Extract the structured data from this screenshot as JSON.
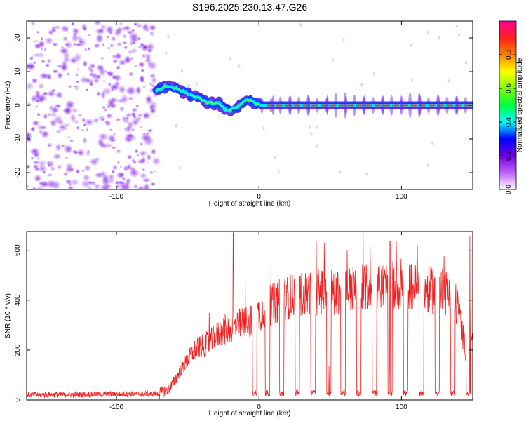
{
  "title": "S196.2025.230.13.47.G26",
  "chart_data": [
    {
      "type": "heatmap",
      "name": "spectrogram",
      "xlabel": "Height of straight line (km)",
      "ylabel": "Frequency (Hz)",
      "xlim": [
        -163,
        150
      ],
      "ylim": [
        -25,
        25
      ],
      "x_ticks": [
        -100,
        0,
        100
      ],
      "x_tick_labels": [
        "-100",
        "0",
        "100"
      ],
      "y_ticks": [
        -20,
        -10,
        0,
        10,
        20
      ],
      "y_tick_labels": [
        "-20",
        "-10",
        "0",
        "10",
        "20"
      ],
      "noise_region_x": [
        -163,
        -72
      ],
      "trace": [
        {
          "x": -72,
          "f": 4.5
        },
        {
          "x": -66,
          "f": 5.5
        },
        {
          "x": -58,
          "f": 5.0
        },
        {
          "x": -53,
          "f": 4.0
        },
        {
          "x": -48,
          "f": 3.0
        },
        {
          "x": -43,
          "f": 2.5
        },
        {
          "x": -38,
          "f": 1.0
        },
        {
          "x": -33,
          "f": 0.5
        },
        {
          "x": -28,
          "f": 0.5
        },
        {
          "x": -24,
          "f": -1.0
        },
        {
          "x": -20,
          "f": -1.5
        },
        {
          "x": -15,
          "f": -0.5
        },
        {
          "x": -10,
          "f": 1.2
        },
        {
          "x": -6,
          "f": 1.5
        },
        {
          "x": -2,
          "f": 0.5
        },
        {
          "x": 2,
          "f": 0.0
        },
        {
          "x": 150,
          "f": 0.0
        }
      ],
      "pulse_positions": [
        10,
        22,
        35,
        48,
        61,
        74,
        87,
        100,
        113,
        126,
        139
      ],
      "colorbar": {
        "label": "Normalized spectral amplitude",
        "range": [
          0,
          1
        ],
        "ticks": [
          0.0,
          0.2,
          0.4,
          0.6,
          0.8
        ],
        "tick_labels": [
          "0.0",
          "0.2",
          "0.4",
          "0.6",
          "0.8"
        ],
        "colors": [
          "#ffffff",
          "#c060ff",
          "#7000e0",
          "#0000ff",
          "#00ffff",
          "#00ff40",
          "#80ff00",
          "#ffff00",
          "#ff8000",
          "#ff2020",
          "#ff0090"
        ]
      }
    },
    {
      "type": "line",
      "name": "snr",
      "xlabel": "Height of straight line (km)",
      "ylabel": "SNR (10 * v/v)",
      "xlim": [
        -163,
        150
      ],
      "ylim": [
        0,
        675
      ],
      "x_ticks": [
        -100,
        0,
        100
      ],
      "x_tick_labels": [
        "-100",
        "0",
        "100"
      ],
      "y_ticks": [
        0,
        200,
        400,
        600
      ],
      "y_tick_labels": [
        "0",
        "200",
        "400",
        "600"
      ],
      "color": "#ee2222",
      "envelope": [
        {
          "x": -163,
          "y": 20
        },
        {
          "x": -70,
          "y": 25
        },
        {
          "x": -62,
          "y": 50
        },
        {
          "x": -55,
          "y": 120
        },
        {
          "x": -45,
          "y": 200
        },
        {
          "x": -35,
          "y": 230
        },
        {
          "x": -25,
          "y": 280
        },
        {
          "x": -15,
          "y": 300
        },
        {
          "x": -5,
          "y": 320
        },
        {
          "x": 5,
          "y": 370
        },
        {
          "x": 15,
          "y": 400
        },
        {
          "x": 25,
          "y": 420
        },
        {
          "x": 40,
          "y": 430
        },
        {
          "x": 60,
          "y": 440
        },
        {
          "x": 80,
          "y": 450
        },
        {
          "x": 100,
          "y": 460
        },
        {
          "x": 120,
          "y": 440
        },
        {
          "x": 135,
          "y": 430
        },
        {
          "x": 140,
          "y": 360
        },
        {
          "x": 145,
          "y": 200
        },
        {
          "x": 150,
          "y": 300
        }
      ],
      "dips_x": [
        -3,
        6,
        16,
        27,
        38,
        49,
        59,
        70,
        81,
        92,
        103,
        114,
        125,
        136,
        147
      ],
      "peaks": [
        {
          "x": -18,
          "y": 670
        },
        {
          "x": 92,
          "y": 635
        },
        {
          "x": 148,
          "y": 655
        },
        {
          "x": 78,
          "y": 615
        },
        {
          "x": 111,
          "y": 620
        },
        {
          "x": 62,
          "y": 600
        }
      ]
    }
  ]
}
